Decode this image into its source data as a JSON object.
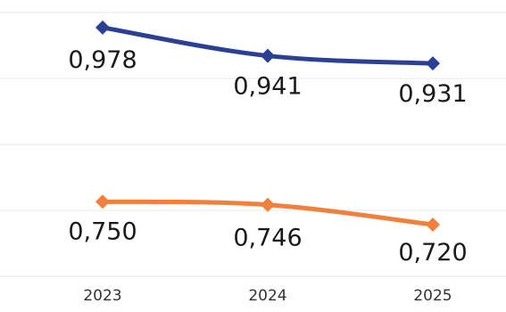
{
  "chart_data": {
    "type": "line",
    "title": "",
    "xlabel": "",
    "ylabel": "",
    "categories": [
      "2023",
      "2024",
      "2025"
    ],
    "ylim": [
      0.65,
      1.0
    ],
    "grid": true,
    "series": [
      {
        "color": "#2b3f95",
        "marker": "diamond",
        "values": [
          0.978,
          0.941,
          0.931
        ],
        "labels": [
          "0,978",
          "0,941",
          "0,931"
        ]
      },
      {
        "color": "#f0803c",
        "marker": "diamond",
        "values": [
          0.75,
          0.746,
          0.72
        ],
        "labels": [
          "0,750",
          "0,746",
          "0,720"
        ]
      }
    ]
  }
}
